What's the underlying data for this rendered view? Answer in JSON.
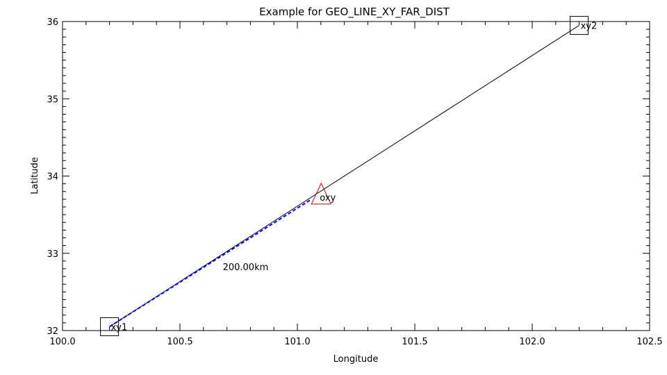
{
  "chart_data": {
    "type": "line",
    "title": "Example for GEO_LINE_XY_FAR_DIST",
    "xlabel": "Longitude",
    "ylabel": "Latitude",
    "xlim": [
      100.0,
      102.5
    ],
    "ylim": [
      32.0,
      36.0
    ],
    "x_ticks": [
      100.0,
      100.5,
      101.0,
      101.5,
      102.0,
      102.5
    ],
    "x_tick_labels": [
      "100.0",
      "100.5",
      "101.0",
      "101.5",
      "102.0",
      "102.5"
    ],
    "y_ticks": [
      32,
      33,
      34,
      35,
      36
    ],
    "y_tick_labels": [
      "32",
      "33",
      "34",
      "35",
      "36"
    ],
    "grid": false,
    "series": [
      {
        "role": "full-line",
        "color": "#000000",
        "x": [
          100.2,
          102.2
        ],
        "y": [
          32.05,
          35.95
        ]
      },
      {
        "role": "far-dist-segment",
        "color": "#0000ff",
        "dashed": true,
        "x": [
          100.2,
          101.06
        ],
        "y": [
          32.05,
          33.7
        ]
      }
    ],
    "markers": [
      {
        "label": "xy1",
        "shape": "square",
        "color": "#000000",
        "x": 100.2,
        "y": 32.05
      },
      {
        "label": "xy2",
        "shape": "square",
        "color": "#000000",
        "x": 102.2,
        "y": 35.95
      },
      {
        "label": "oxy",
        "shape": "triangle",
        "color": "#cc0000",
        "x": 101.06,
        "y": 33.7
      }
    ],
    "annotations": [
      {
        "text": "200.00km",
        "x": 100.7,
        "y": 32.9
      }
    ]
  }
}
